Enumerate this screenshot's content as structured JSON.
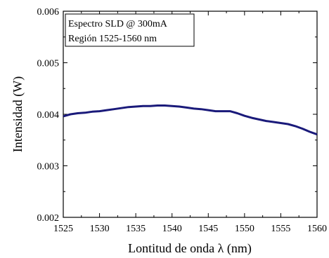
{
  "chart_data": {
    "type": "line",
    "xlabel": "Lontitud de onda λ (nm)",
    "ylabel": "Intensidad (W)",
    "xlim": [
      1525,
      1560
    ],
    "ylim": [
      0.002,
      0.006
    ],
    "x_ticks": [
      1525,
      1530,
      1535,
      1540,
      1545,
      1550,
      1555,
      1560
    ],
    "y_ticks": [
      "0.002",
      "0.003",
      "0.004",
      "0.005",
      "0.006"
    ],
    "grid": false,
    "annotation_lines": [
      "Espectro SLD @ 300mA",
      "Región 1525-1560 nm"
    ],
    "series": [
      {
        "color": "#1a1a7a",
        "x": [
          1525,
          1526,
          1527,
          1528,
          1529,
          1530,
          1531,
          1532,
          1533,
          1534,
          1535,
          1536,
          1537,
          1538,
          1539,
          1540,
          1541,
          1542,
          1543,
          1544,
          1545,
          1546,
          1547,
          1548,
          1549,
          1550,
          1551,
          1552,
          1553,
          1554,
          1555,
          1556,
          1557,
          1558,
          1559,
          1560
        ],
        "y": [
          0.00396,
          0.004,
          0.00402,
          0.00403,
          0.00405,
          0.00406,
          0.00408,
          0.0041,
          0.00412,
          0.00414,
          0.00415,
          0.00416,
          0.00416,
          0.00417,
          0.00417,
          0.00416,
          0.00415,
          0.00413,
          0.00411,
          0.0041,
          0.00408,
          0.00406,
          0.00406,
          0.00406,
          0.00402,
          0.00397,
          0.00393,
          0.0039,
          0.00387,
          0.00385,
          0.00383,
          0.00381,
          0.00377,
          0.00372,
          0.00366,
          0.00361
        ]
      }
    ]
  }
}
